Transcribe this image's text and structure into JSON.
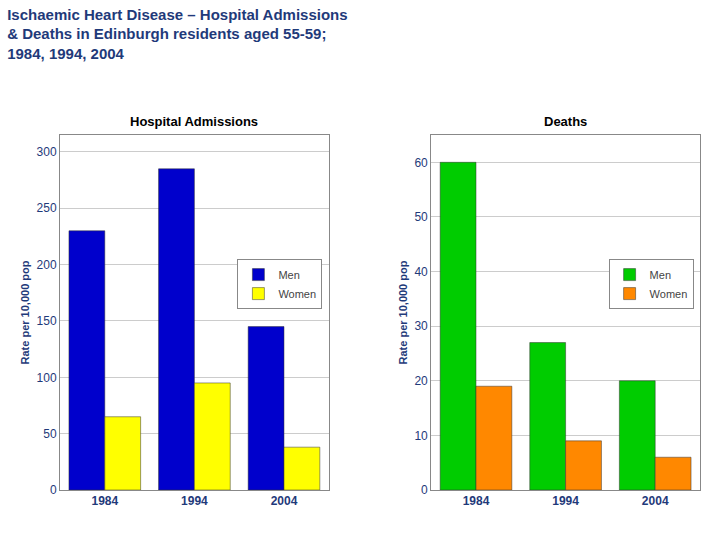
{
  "title": [
    "Ischaemic Heart Disease – Hospital Admissions",
    "& Deaths in Edinburgh residents aged 55-59;",
    "1984, 1994, 2004"
  ],
  "chart_data": [
    {
      "type": "bar",
      "title": "Hospital Admissions",
      "ylabel": "Rate per 10,000 pop",
      "categories": [
        "1984",
        "1994",
        "2004"
      ],
      "series": [
        {
          "name": "Men",
          "color": "#0000CC",
          "values": [
            230,
            285,
            145
          ]
        },
        {
          "name": "Women",
          "color": "#FFFF00",
          "values": [
            65,
            95,
            38
          ]
        }
      ],
      "ylim": [
        0,
        315
      ],
      "yticks": [
        0,
        50,
        100,
        150,
        200,
        250,
        300
      ],
      "grid": true,
      "legend": "right"
    },
    {
      "type": "bar",
      "title": "Deaths",
      "ylabel": "Rate per 10,000 pop",
      "categories": [
        "1984",
        "1994",
        "2004"
      ],
      "series": [
        {
          "name": "Men",
          "color": "#00CC00",
          "values": [
            60,
            27,
            20
          ]
        },
        {
          "name": "Women",
          "color": "#FF8800",
          "values": [
            19,
            9,
            6
          ]
        }
      ],
      "ylim": [
        0,
        65
      ],
      "yticks": [
        0,
        10,
        20,
        30,
        40,
        50,
        60
      ],
      "grid": true,
      "legend": "right"
    }
  ]
}
